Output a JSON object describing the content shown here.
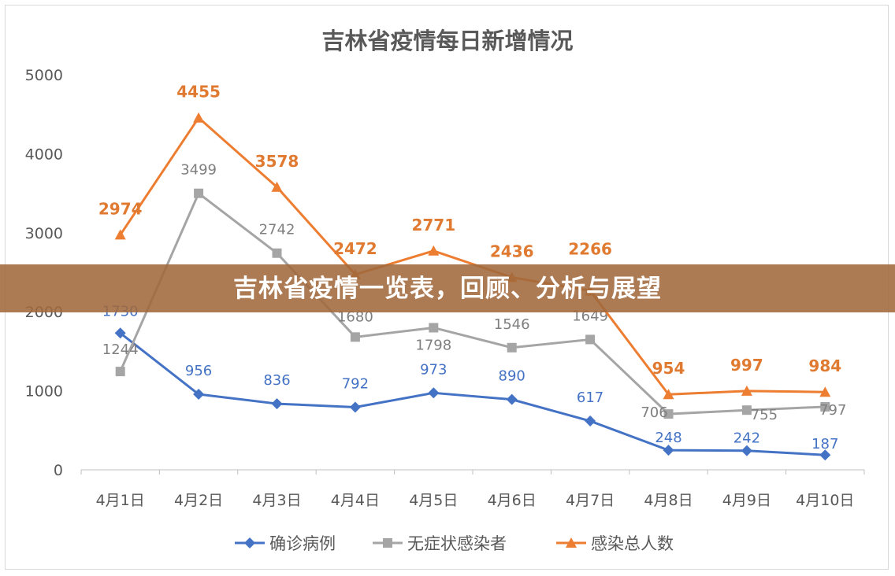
{
  "banner": {
    "text": "吉林省疫情一览表，回顾、分析与展望"
  },
  "chart_data": {
    "type": "line",
    "title": "吉林省疫情每日新增情况",
    "xlabel": "",
    "ylabel": "",
    "ylim": [
      0,
      5000
    ],
    "yticks": [
      "0",
      "1000",
      "2000",
      "3000",
      "4000",
      "5000"
    ],
    "grid": false,
    "legend": "bottom",
    "categories": [
      "4月1日",
      "4月2日",
      "4月3日",
      "4月4日",
      "4月5日",
      "4月6日",
      "4月7日",
      "4月8日",
      "4月9日",
      "4月10日"
    ],
    "series": [
      {
        "name": "确诊病例",
        "color": "#4472c4",
        "marker": "diamond",
        "values": [
          1730,
          956,
          836,
          792,
          973,
          890,
          617,
          248,
          242,
          187
        ]
      },
      {
        "name": "无症状感染者",
        "color": "#a5a5a5",
        "marker": "square",
        "values": [
          1244,
          3499,
          2742,
          1680,
          1798,
          1546,
          1649,
          706,
          755,
          797
        ]
      },
      {
        "name": "感染总人数",
        "color": "#ed7d31",
        "marker": "triangle",
        "values": [
          2974,
          4455,
          3578,
          2472,
          2771,
          2436,
          2266,
          954,
          997,
          984
        ]
      }
    ]
  }
}
